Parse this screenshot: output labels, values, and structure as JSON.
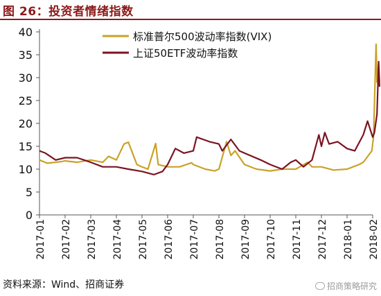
{
  "figure": {
    "title": "图 26：投资者情绪指数",
    "source": "资料来源：Wind、招商证券",
    "watermark": "招商策略研究"
  },
  "chart_data": {
    "type": "line",
    "title": "",
    "xlabel": "",
    "ylabel": "",
    "ylim": [
      0,
      40
    ],
    "yticks": [
      0,
      5,
      10,
      15,
      20,
      25,
      30,
      35,
      40
    ],
    "xlim": [
      "2017-01",
      "2018-02"
    ],
    "xticks": [
      "2017-01",
      "2017-02",
      "2017-03",
      "2017-04",
      "2017-05",
      "2017-06",
      "2017-07",
      "2017-08",
      "2017-09",
      "2017-10",
      "2017-11",
      "2017-12",
      "2018-01",
      "2018-02"
    ],
    "grid": false,
    "legend_position": "top-center",
    "series": [
      {
        "name": "标准普尔500波动率指数(VIX)",
        "color": "#C9A227",
        "points": [
          [
            "2017-01",
            12.0
          ],
          [
            "2017-01-10",
            11.3
          ],
          [
            "2017-01-25",
            11.6
          ],
          [
            "2017-02",
            11.8
          ],
          [
            "2017-02-15",
            11.5
          ],
          [
            "2017-03",
            12.0
          ],
          [
            "2017-03-15",
            11.5
          ],
          [
            "2017-03-22",
            12.8
          ],
          [
            "2017-04",
            12.0
          ],
          [
            "2017-04-10",
            15.5
          ],
          [
            "2017-04-15",
            15.9
          ],
          [
            "2017-04-25",
            11.0
          ],
          [
            "2017-05",
            10.5
          ],
          [
            "2017-05-08",
            10.0
          ],
          [
            "2017-05-17",
            15.6
          ],
          [
            "2017-05-20",
            11.0
          ],
          [
            "2017-06",
            10.5
          ],
          [
            "2017-06-15",
            10.5
          ],
          [
            "2017-06-29",
            11.4
          ],
          [
            "2017-07",
            11.0
          ],
          [
            "2017-07-15",
            10.0
          ],
          [
            "2017-07-26",
            9.6
          ],
          [
            "2017-08",
            10.0
          ],
          [
            "2017-08-10",
            16.0
          ],
          [
            "2017-08-15",
            13.0
          ],
          [
            "2017-08-20",
            14.0
          ],
          [
            "2017-09",
            11.0
          ],
          [
            "2017-09-15",
            10.0
          ],
          [
            "2017-10",
            9.6
          ],
          [
            "2017-10-15",
            10.0
          ],
          [
            "2017-11",
            10.0
          ],
          [
            "2017-11-15",
            11.5
          ],
          [
            "2017-11-20",
            10.5
          ],
          [
            "2017-12",
            10.5
          ],
          [
            "2017-12-15",
            9.8
          ],
          [
            "2018-01",
            10.0
          ],
          [
            "2018-01-15",
            11.0
          ],
          [
            "2018-01-20",
            11.5
          ],
          [
            "2018-01-30",
            14.0
          ],
          [
            "2018-02-02",
            17.0
          ],
          [
            "2018-02-05",
            37.3
          ],
          [
            "2018-02-06",
            29.0
          ],
          [
            "2018-02-08",
            33.0
          ],
          [
            "2018-02-09",
            29.0
          ]
        ]
      },
      {
        "name": "上证50ETF波动率指数",
        "color": "#7B1322",
        "points": [
          [
            "2017-01",
            14.0
          ],
          [
            "2017-01-08",
            13.5
          ],
          [
            "2017-01-20",
            12.0
          ],
          [
            "2017-02",
            12.5
          ],
          [
            "2017-02-15",
            12.5
          ],
          [
            "2017-03",
            11.5
          ],
          [
            "2017-03-15",
            10.5
          ],
          [
            "2017-04",
            10.5
          ],
          [
            "2017-04-15",
            10.0
          ],
          [
            "2017-05",
            9.5
          ],
          [
            "2017-05-15",
            8.8
          ],
          [
            "2017-05-25",
            9.5
          ],
          [
            "2017-06",
            11.0
          ],
          [
            "2017-06-10",
            14.5
          ],
          [
            "2017-06-20",
            13.5
          ],
          [
            "2017-07",
            14.0
          ],
          [
            "2017-07-05",
            17.0
          ],
          [
            "2017-07-20",
            16.0
          ],
          [
            "2017-08",
            15.5
          ],
          [
            "2017-08-05",
            14.0
          ],
          [
            "2017-08-15",
            16.5
          ],
          [
            "2017-08-25",
            14.0
          ],
          [
            "2017-09",
            13.5
          ],
          [
            "2017-09-20",
            12.0
          ],
          [
            "2017-10",
            11.0
          ],
          [
            "2017-10-15",
            10.0
          ],
          [
            "2017-10-25",
            11.5
          ],
          [
            "2017-11",
            12.0
          ],
          [
            "2017-11-10",
            10.5
          ],
          [
            "2017-11-20",
            12.0
          ],
          [
            "2017-11-28",
            17.5
          ],
          [
            "2017-12",
            15.0
          ],
          [
            "2017-12-05",
            18.0
          ],
          [
            "2017-12-10",
            15.5
          ],
          [
            "2017-12-20",
            16.0
          ],
          [
            "2018-01",
            14.5
          ],
          [
            "2018-01-10",
            14.0
          ],
          [
            "2018-01-20",
            17.5
          ],
          [
            "2018-01-25",
            20.5
          ],
          [
            "2018-02",
            17.0
          ],
          [
            "2018-02-03",
            18.0
          ],
          [
            "2018-02-06",
            22.0
          ],
          [
            "2018-02-08",
            33.5
          ],
          [
            "2018-02-09",
            28.0
          ]
        ]
      }
    ]
  }
}
